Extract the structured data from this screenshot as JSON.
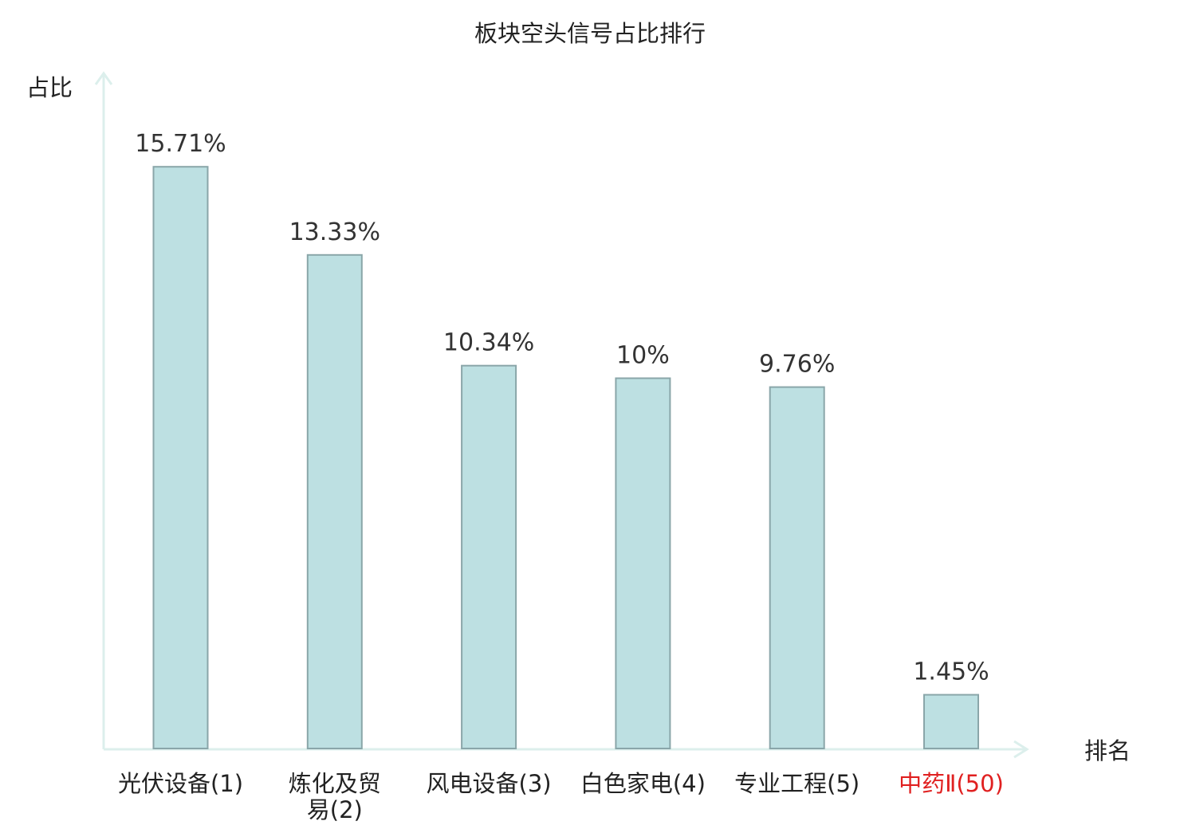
{
  "chart_data": {
    "type": "bar",
    "title": "板块空头信号占比排行",
    "ylabel": "占比",
    "xlabel": "排名",
    "ylim": [
      0,
      17.2
    ],
    "grid": false,
    "categories": [
      {
        "lines": [
          "光伏设备(1)"
        ],
        "highlight": false
      },
      {
        "lines": [
          "炼化及贸",
          "易(2)"
        ],
        "highlight": false
      },
      {
        "lines": [
          "风电设备(3)"
        ],
        "highlight": false
      },
      {
        "lines": [
          "白色家电(4)"
        ],
        "highlight": false
      },
      {
        "lines": [
          "专业工程(5)"
        ],
        "highlight": false
      },
      {
        "lines": [
          "中药Ⅱ(50)"
        ],
        "highlight": true
      }
    ],
    "values": [
      15.71,
      13.33,
      10.34,
      10,
      9.76,
      1.45
    ],
    "value_labels": [
      "15.71%",
      "13.33%",
      "10.34%",
      "10%",
      "9.76%",
      "1.45%"
    ],
    "colors": {
      "bar_fill": "#bde0e2",
      "bar_stroke": "#8aa6a9",
      "axis": "#dcefec",
      "highlight": "#e02020"
    }
  }
}
